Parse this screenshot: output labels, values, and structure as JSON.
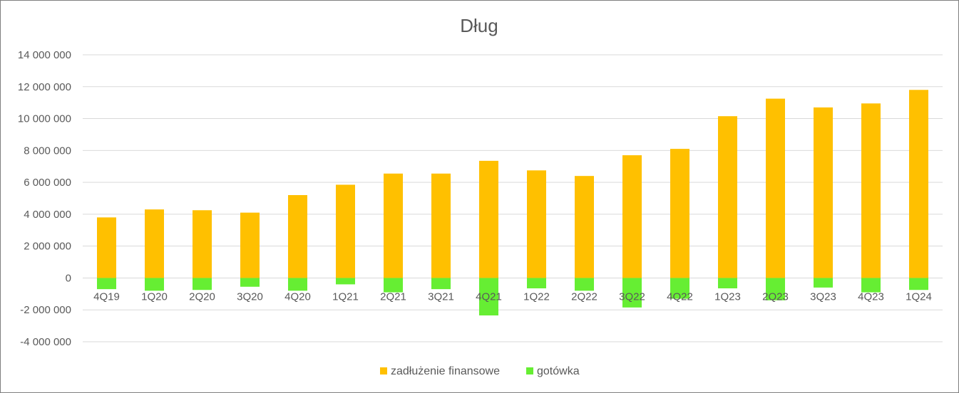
{
  "chart_data": {
    "type": "bar",
    "title": "Dług",
    "categories": [
      "4Q19",
      "1Q20",
      "2Q20",
      "3Q20",
      "4Q20",
      "1Q21",
      "2Q21",
      "3Q21",
      "4Q21",
      "1Q22",
      "2Q22",
      "3Q22",
      "4Q22",
      "1Q23",
      "2Q23",
      "3Q23",
      "4Q23",
      "1Q24"
    ],
    "series": [
      {
        "name": "zadłużenie finansowe",
        "color": "#ffc000",
        "values": [
          3800000,
          4300000,
          4250000,
          4100000,
          5200000,
          5850000,
          6550000,
          6550000,
          7350000,
          6750000,
          6400000,
          7700000,
          8100000,
          10150000,
          11250000,
          10700000,
          10950000,
          11800000
        ]
      },
      {
        "name": "gotówka",
        "color": "#66ee33",
        "values": [
          -700000,
          -800000,
          -750000,
          -550000,
          -800000,
          -400000,
          -900000,
          -700000,
          -2350000,
          -650000,
          -800000,
          -1850000,
          -1300000,
          -650000,
          -1400000,
          -600000,
          -900000,
          -750000
        ]
      }
    ],
    "ylim": [
      -4000000,
      14000000
    ],
    "yticks": [
      14000000,
      12000000,
      10000000,
      8000000,
      6000000,
      4000000,
      2000000,
      0,
      -2000000,
      -4000000
    ],
    "ytick_labels": [
      "14 000 000",
      "12 000 000",
      "10 000 000",
      "8 000 000",
      "6 000 000",
      "4 000 000",
      "2 000 000",
      "0",
      "-2 000 000",
      "-4 000 000"
    ],
    "grid": true,
    "legend_position": "bottom",
    "gridline_color": "#d9d9d9"
  }
}
